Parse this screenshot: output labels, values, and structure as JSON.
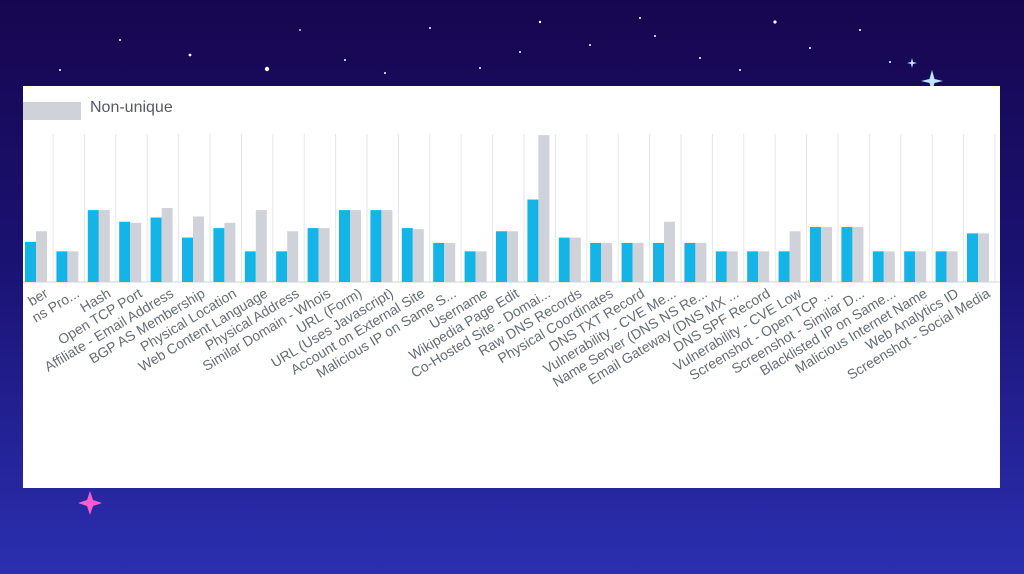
{
  "chart_data": {
    "type": "bar",
    "legend": {
      "placement": "top-left",
      "entries": [
        {
          "name": "Non-unique",
          "color": "#cfd3d9"
        }
      ]
    },
    "grid": true,
    "ylim": [
      0,
      14
    ],
    "categories": [
      "ber",
      "ns Pro...",
      "Hash",
      "Open TCP Port",
      "Affiliate - Email Address",
      "BGP AS Membership",
      "Physical Location",
      "Web Content Language",
      "Physical Address",
      "Similar Domain - Whois",
      "URL (Form)",
      "URL (Uses Javascript)",
      "Account on External Site",
      "Malicious IP on Same S...",
      "Username",
      "Wikipedia Page Edit",
      "Co-Hosted Site - Domai...",
      "Raw DNS Records",
      "Physical Coordinates",
      "DNS TXT Record",
      "Vulnerability - CVE Me...",
      "Name Server (DNS NS Re...",
      "Email Gateway (DNS MX ...",
      "DNS SPF Record",
      "Vulnerability - CVE Low",
      "Screenshot - Open TCP ...",
      "Screenshot - Similar D...",
      "Blacklisted IP on Same...",
      "Malicious Internet Name",
      "Web Analytics ID",
      "Screenshot - Social Media"
    ],
    "series": [
      {
        "color": "#14b4e6",
        "values": [
          3.8,
          2.9,
          6.8,
          5.7,
          6.1,
          4.2,
          5.1,
          2.9,
          2.9,
          5.1,
          6.8,
          6.8,
          5.1,
          3.7,
          2.9,
          4.8,
          7.8,
          4.2,
          3.7,
          3.7,
          3.7,
          3.7,
          2.9,
          2.9,
          2.9,
          5.2,
          5.2,
          2.9,
          2.9,
          2.9,
          4.6
        ]
      },
      {
        "name": "Non-unique",
        "color": "#cfd3d9",
        "values": [
          4.8,
          2.9,
          6.8,
          5.6,
          7.0,
          6.2,
          5.6,
          6.8,
          4.8,
          5.1,
          6.8,
          6.8,
          5.0,
          3.7,
          2.9,
          4.8,
          13.9,
          4.2,
          3.7,
          3.7,
          5.7,
          3.7,
          2.9,
          2.9,
          4.8,
          5.2,
          5.2,
          2.9,
          2.9,
          2.9,
          4.6
        ]
      }
    ]
  }
}
